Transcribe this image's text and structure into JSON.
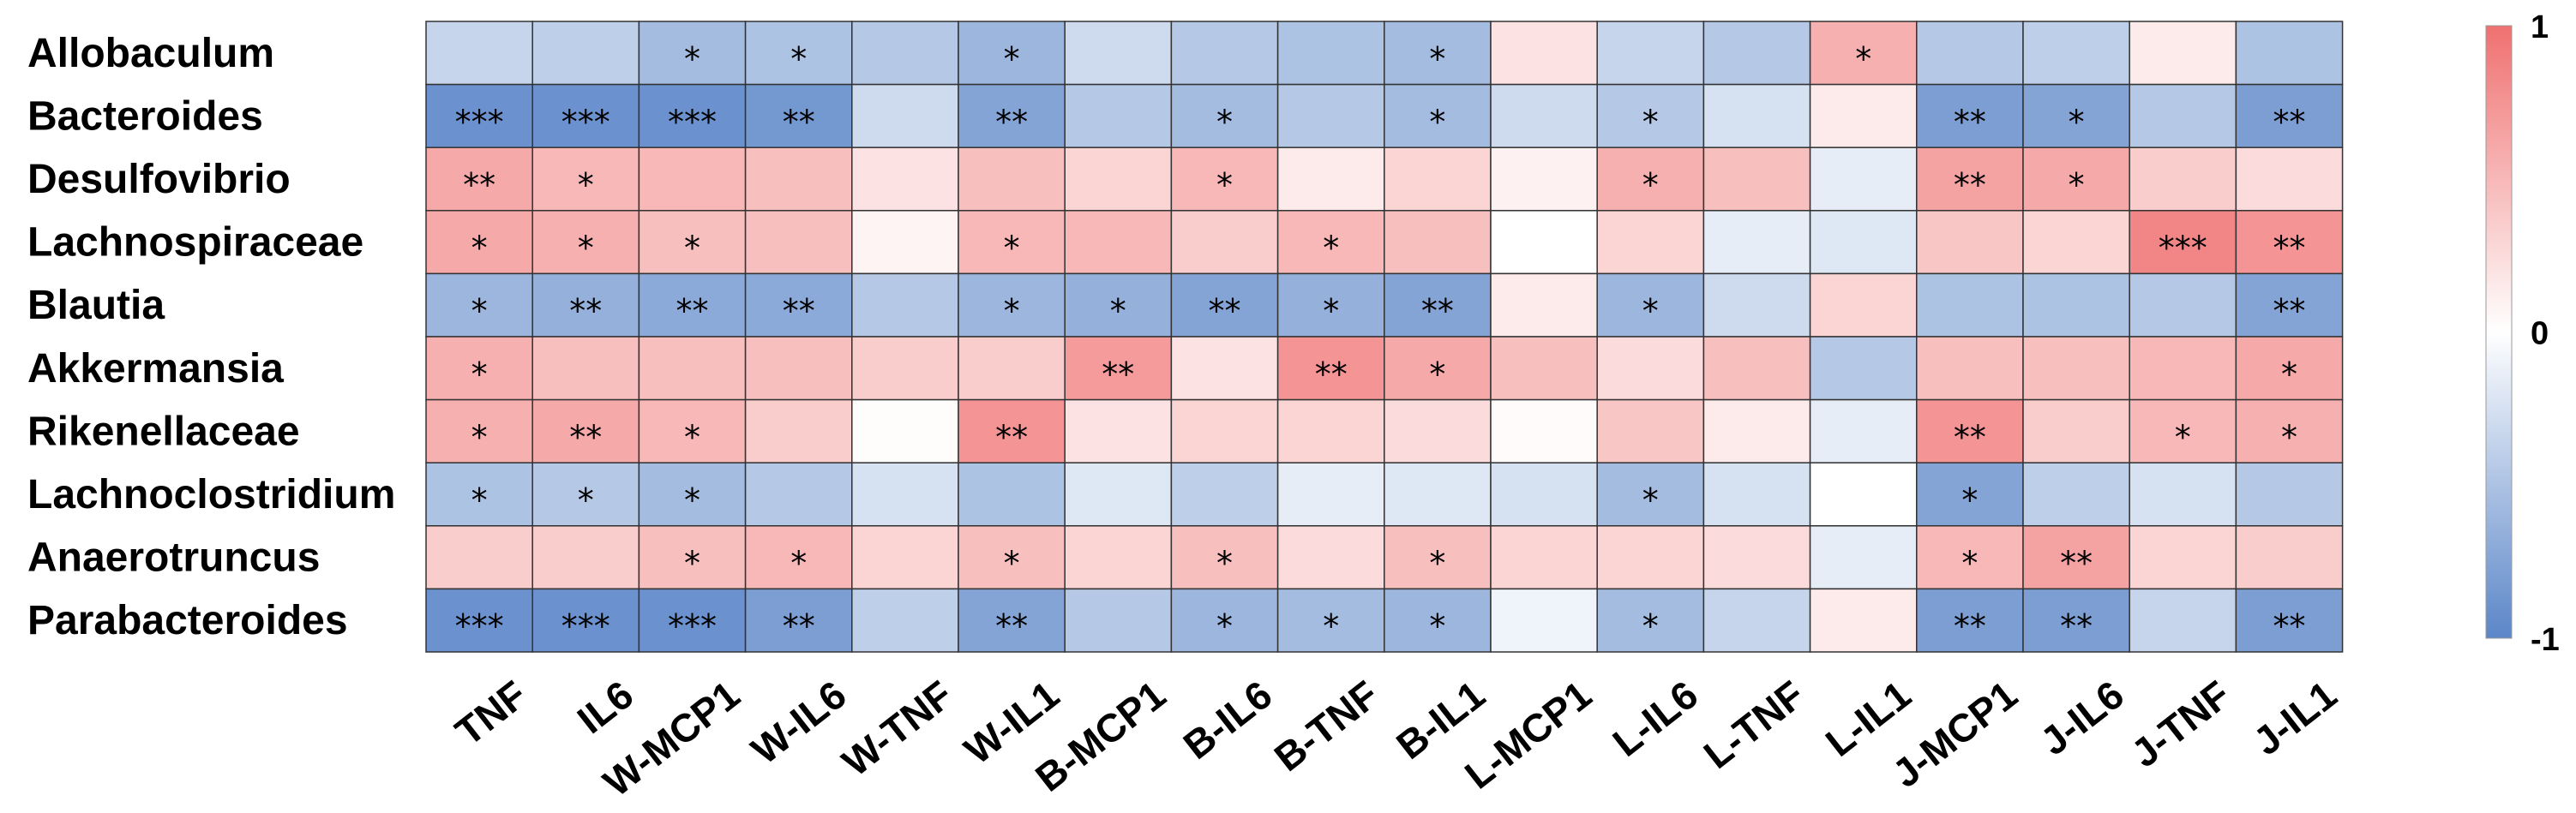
{
  "chart_data": {
    "type": "heatmap",
    "title": "",
    "xlabel": "",
    "ylabel": "",
    "rows": [
      "Allobaculum",
      "Bacteroides",
      "Desulfovibrio",
      "Lachnospiraceae",
      "Blautia",
      "Akkermansia",
      "Rikenellaceae",
      "Lachnoclostridium",
      "Anaerotruncus",
      "Parabacteroides"
    ],
    "columns": [
      "TNF",
      "IL6",
      "W-MCP1",
      "W-IL6",
      "W-TNF",
      "W-IL1",
      "B-MCP1",
      "B-IL6",
      "B-TNF",
      "B-IL1",
      "L-MCP1",
      "L-IL6",
      "L-TNF",
      "L-IL1",
      "J-MCP1",
      "J-IL6",
      "J-TNF",
      "J-IL1"
    ],
    "values": [
      [
        -0.35,
        -0.4,
        -0.55,
        -0.5,
        -0.45,
        -0.6,
        -0.3,
        -0.45,
        -0.5,
        -0.55,
        0.2,
        -0.35,
        -0.45,
        0.55,
        -0.45,
        -0.4,
        0.15,
        -0.5
      ],
      [
        -0.9,
        -0.9,
        -0.9,
        -0.85,
        -0.3,
        -0.75,
        -0.45,
        -0.55,
        -0.45,
        -0.55,
        -0.3,
        -0.45,
        -0.25,
        0.15,
        -0.8,
        -0.75,
        -0.45,
        -0.8
      ],
      [
        0.6,
        0.5,
        0.5,
        0.45,
        0.2,
        0.45,
        0.3,
        0.5,
        0.15,
        0.3,
        0.1,
        0.55,
        0.45,
        -0.15,
        0.65,
        0.6,
        0.35,
        0.25
      ],
      [
        0.6,
        0.55,
        0.45,
        0.45,
        0.08,
        0.5,
        0.5,
        0.35,
        0.5,
        0.45,
        0.0,
        0.3,
        -0.15,
        -0.2,
        0.4,
        0.3,
        0.85,
        0.75
      ],
      [
        -0.6,
        -0.65,
        -0.7,
        -0.7,
        -0.45,
        -0.6,
        -0.65,
        -0.75,
        -0.65,
        -0.75,
        0.15,
        -0.6,
        -0.3,
        0.3,
        -0.5,
        -0.5,
        -0.45,
        -0.75
      ],
      [
        0.55,
        0.45,
        0.45,
        0.45,
        0.35,
        0.35,
        0.7,
        0.2,
        0.75,
        0.6,
        0.45,
        0.25,
        0.45,
        -0.45,
        0.45,
        0.45,
        0.5,
        0.6
      ],
      [
        0.55,
        0.6,
        0.5,
        0.35,
        0.02,
        0.75,
        0.2,
        0.3,
        0.3,
        0.25,
        0.03,
        0.4,
        0.15,
        -0.15,
        0.75,
        0.35,
        0.5,
        0.55
      ],
      [
        -0.5,
        -0.45,
        -0.55,
        -0.45,
        -0.25,
        -0.5,
        -0.2,
        -0.4,
        -0.15,
        -0.2,
        -0.25,
        -0.55,
        -0.25,
        0.0,
        -0.75,
        -0.4,
        -0.25,
        -0.45
      ],
      [
        0.35,
        0.35,
        0.45,
        0.5,
        0.3,
        0.45,
        0.3,
        0.45,
        0.25,
        0.45,
        0.3,
        0.3,
        0.25,
        -0.15,
        0.5,
        0.65,
        0.3,
        0.35
      ],
      [
        -0.9,
        -0.9,
        -0.9,
        -0.8,
        -0.4,
        -0.75,
        -0.45,
        -0.6,
        -0.55,
        -0.6,
        -0.1,
        -0.55,
        -0.35,
        0.15,
        -0.8,
        -0.8,
        -0.35,
        -0.8
      ]
    ],
    "annotations": [
      [
        "",
        "",
        "*",
        "*",
        "",
        "*",
        "",
        "",
        "",
        "*",
        "",
        "",
        "",
        "*",
        "",
        "",
        "",
        ""
      ],
      [
        "***",
        "***",
        "***",
        "**",
        "",
        "**",
        "",
        "*",
        "",
        "*",
        "",
        "*",
        "",
        "",
        "**",
        "*",
        "",
        "**"
      ],
      [
        "**",
        "*",
        "",
        "",
        "",
        "",
        "",
        "*",
        "",
        "",
        "",
        "*",
        "",
        "",
        "**",
        "*",
        "",
        ""
      ],
      [
        "*",
        "*",
        "*",
        "",
        "",
        "*",
        "",
        "",
        "*",
        "",
        "",
        "",
        "",
        "",
        "",
        "",
        "***",
        "**"
      ],
      [
        "*",
        "**",
        "**",
        "**",
        "",
        "*",
        "*",
        "**",
        "*",
        "**",
        "",
        "*",
        "",
        "",
        "",
        "",
        "",
        "**"
      ],
      [
        "*",
        "",
        "",
        "",
        "",
        "",
        "**",
        "",
        "**",
        "*",
        "",
        "",
        "",
        "",
        "",
        "",
        "",
        "*"
      ],
      [
        "*",
        "**",
        "*",
        "",
        "",
        "**",
        "",
        "",
        "",
        "",
        "",
        "",
        "",
        "",
        "**",
        "",
        "*",
        "*"
      ],
      [
        "*",
        "*",
        "*",
        "",
        "",
        "",
        "",
        "",
        "",
        "",
        "",
        "*",
        "",
        "",
        "*",
        "",
        "",
        ""
      ],
      [
        "",
        "",
        "*",
        "*",
        "",
        "*",
        "",
        "*",
        "",
        "*",
        "",
        "",
        "",
        "",
        "*",
        "**",
        "",
        ""
      ],
      [
        "***",
        "***",
        "***",
        "**",
        "",
        "**",
        "",
        "*",
        "*",
        "*",
        "",
        "*",
        "",
        "",
        "**",
        "**",
        "",
        "**"
      ]
    ],
    "value_range": [
      -1,
      1
    ],
    "colorbar": {
      "ticks": [
        "1",
        "0",
        "-1"
      ],
      "tick_values": [
        1,
        0,
        -1
      ],
      "low_color": "#5b86c8",
      "mid_color": "#ffffff",
      "high_color": "#f07070"
    }
  }
}
